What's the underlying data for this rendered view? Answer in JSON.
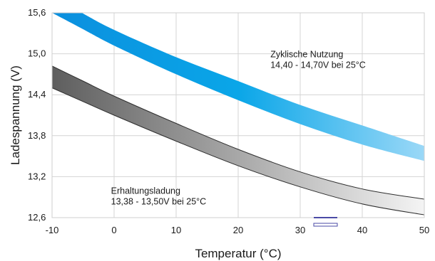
{
  "chart_data": {
    "type": "area",
    "xlabel": "Temperatur (°C)",
    "ylabel": "Ladespannung (V)",
    "xlim": [
      -10,
      50
    ],
    "ylim": [
      12.6,
      15.6
    ],
    "x_ticks": [
      -10,
      0,
      10,
      20,
      30,
      40,
      50
    ],
    "x_tick_labels": [
      "-10",
      "0",
      "10",
      "20",
      "30",
      "40",
      "50"
    ],
    "y_ticks": [
      12.6,
      13.2,
      13.8,
      14.4,
      15.0,
      15.6
    ],
    "y_tick_labels": [
      "12,6",
      "13,2",
      "13,8",
      "14,4",
      "15,0",
      "15,6"
    ],
    "grid": true,
    "bands": [
      {
        "colors": [
          "#0b8fde",
          "#0aa6e8",
          "#9ad8f7"
        ],
        "x": [
          -10,
          -5.2,
          0,
          10,
          20,
          30,
          40,
          50
        ],
        "upper": [
          15.85,
          15.6,
          15.35,
          14.95,
          14.6,
          14.25,
          13.95,
          13.65
        ],
        "lower": [
          15.6,
          15.37,
          15.12,
          14.7,
          14.32,
          13.97,
          13.67,
          13.43
        ]
      },
      {
        "colors": [
          "#5e5e5e",
          "#a8a8a8",
          "#f4f4f4"
        ],
        "x": [
          -10,
          -5,
          0,
          10,
          20,
          30,
          40,
          50
        ],
        "upper": [
          14.82,
          14.6,
          14.38,
          13.98,
          13.6,
          13.27,
          13.02,
          12.87
        ],
        "lower": [
          14.5,
          14.3,
          14.1,
          13.72,
          13.36,
          13.05,
          12.8,
          12.64
        ]
      }
    ],
    "annotations": [
      {
        "line1": "Zyklische Nutzung",
        "line2": "14,40 - 14,70V bei 25°C",
        "x": 25.2,
        "y": 14.95
      },
      {
        "line1": "Erhaltungsladung",
        "line2": "13,38 - 13,50V bei 25°C",
        "x": -0.5,
        "y": 12.95
      }
    ]
  }
}
